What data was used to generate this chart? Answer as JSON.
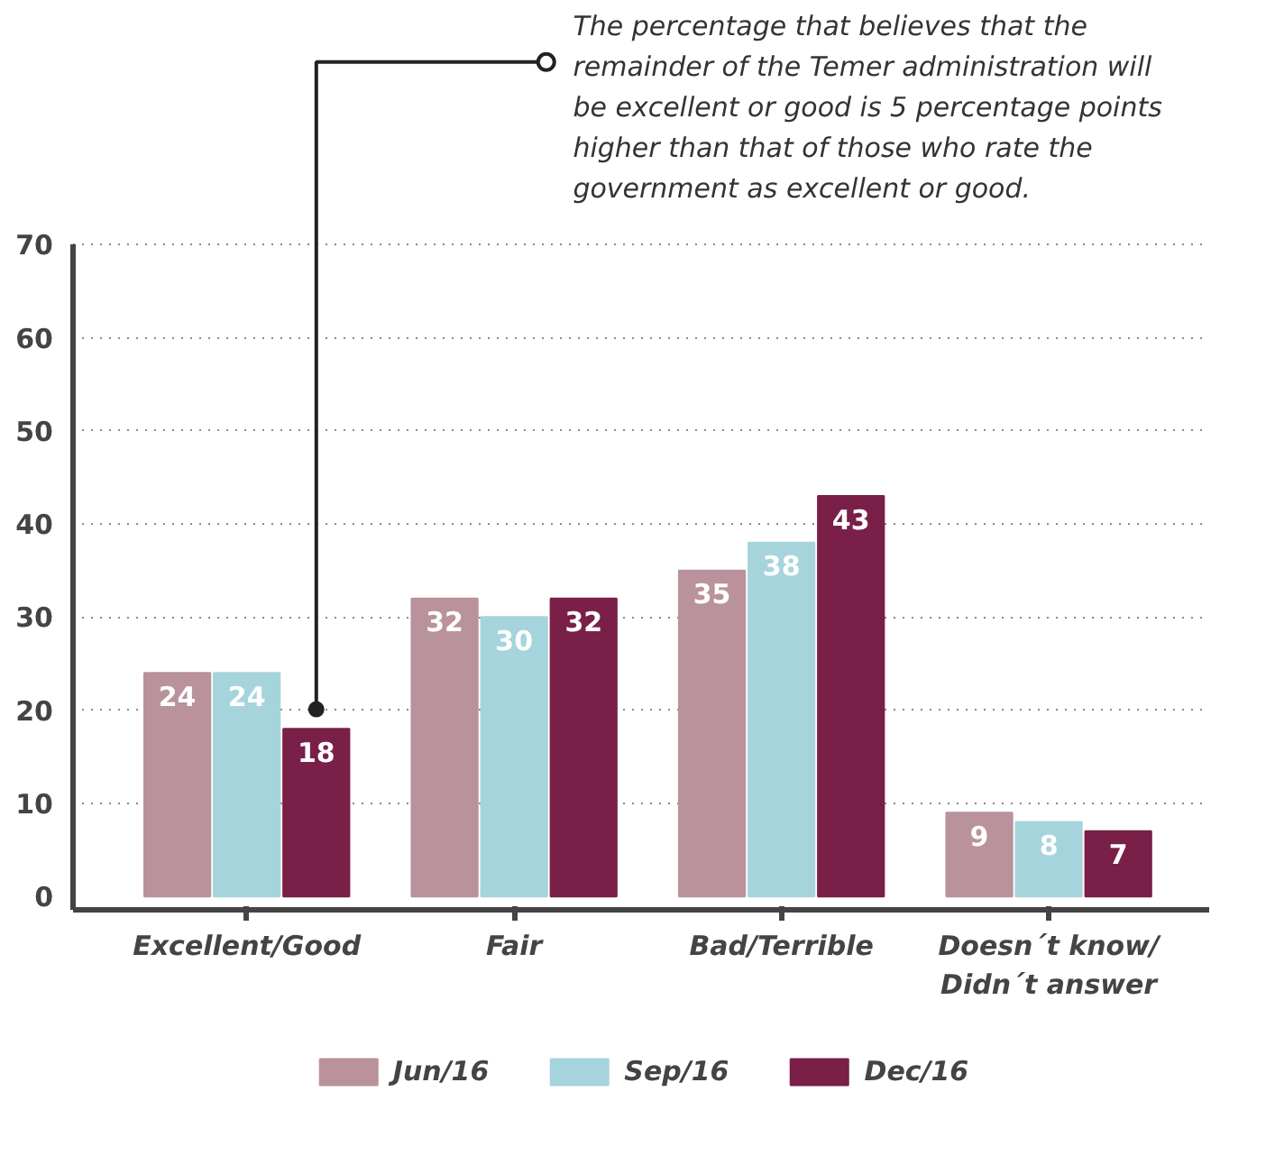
{
  "chart_data": {
    "type": "bar",
    "categories": [
      "Excellent/Good",
      "Fair",
      "Bad/Terrible",
      "Doesn´t know/\nDidn´t answer"
    ],
    "series": [
      {
        "name": "Jun/16",
        "color": "#b9929b",
        "values": [
          24,
          32,
          35,
          9
        ]
      },
      {
        "name": "Sep/16",
        "color": "#a6d4dc",
        "values": [
          24,
          30,
          38,
          8
        ]
      },
      {
        "name": "Dec/16",
        "color": "#7a1f48",
        "values": [
          18,
          32,
          43,
          7
        ]
      }
    ],
    "ylim": [
      0,
      70
    ],
    "yticks": [
      0,
      10,
      20,
      30,
      40,
      50,
      60,
      70
    ],
    "grid": "y",
    "legend": "bottom",
    "data_labels": true,
    "annotations": [
      "The percentage that believes that the\nremainder of the Temer administration will\nbe excellent or good is 5 percentage points\nhigher than that of those who rate the\ngovernment as excellent or good."
    ]
  }
}
